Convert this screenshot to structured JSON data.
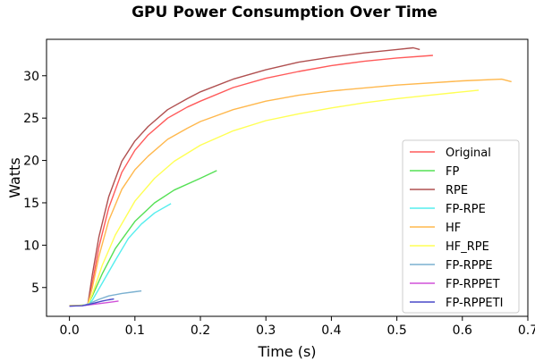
{
  "chart_data": {
    "type": "line",
    "title": "GPU Power Consumption Over Time",
    "xlabel": "Time (s)",
    "ylabel": "Watts",
    "xlim": [
      -0.035,
      0.7
    ],
    "ylim": [
      1.6,
      34.3
    ],
    "xticks": [
      0.0,
      0.1,
      0.2,
      0.3,
      0.4,
      0.5,
      0.6,
      0.7
    ],
    "xtick_labels": [
      "0.0",
      "0.1",
      "0.2",
      "0.3",
      "0.4",
      "0.5",
      "0.6",
      "0.7"
    ],
    "yticks": [
      5,
      10,
      15,
      20,
      25,
      30
    ],
    "ytick_labels": [
      "5",
      "10",
      "15",
      "20",
      "25",
      "30"
    ],
    "grid": false,
    "legend_position": "lower-right",
    "series": [
      {
        "name": "Original",
        "color": "#ff5a5a",
        "x": [
          0.0,
          0.01,
          0.02,
          0.028,
          0.035,
          0.045,
          0.06,
          0.08,
          0.1,
          0.12,
          0.15,
          0.18,
          0.2,
          0.25,
          0.3,
          0.35,
          0.4,
          0.45,
          0.5,
          0.555
        ],
        "y": [
          2.9,
          2.9,
          2.9,
          2.95,
          5.5,
          9.8,
          14.4,
          18.6,
          21.2,
          23.0,
          25.0,
          26.3,
          27.0,
          28.6,
          29.7,
          30.5,
          31.2,
          31.7,
          32.1,
          32.4
        ]
      },
      {
        "name": "FP",
        "color": "#55e055",
        "x": [
          0.0,
          0.015,
          0.028,
          0.035,
          0.05,
          0.07,
          0.1,
          0.13,
          0.16,
          0.2,
          0.225
        ],
        "y": [
          2.9,
          2.9,
          2.95,
          4.0,
          6.6,
          9.6,
          12.8,
          15.0,
          16.5,
          17.9,
          18.8
        ]
      },
      {
        "name": "RPE",
        "color": "#b05050",
        "x": [
          0.0,
          0.01,
          0.02,
          0.028,
          0.035,
          0.045,
          0.06,
          0.08,
          0.1,
          0.12,
          0.15,
          0.18,
          0.2,
          0.25,
          0.3,
          0.35,
          0.4,
          0.45,
          0.5,
          0.525,
          0.535
        ],
        "y": [
          2.9,
          2.9,
          2.9,
          2.95,
          6.5,
          11.0,
          15.7,
          19.9,
          22.3,
          24.0,
          26.0,
          27.3,
          28.1,
          29.6,
          30.7,
          31.6,
          32.2,
          32.7,
          33.1,
          33.3,
          33.1
        ]
      },
      {
        "name": "FP-RPE",
        "color": "#55eeee",
        "x": [
          0.0,
          0.015,
          0.028,
          0.035,
          0.05,
          0.07,
          0.09,
          0.11,
          0.13,
          0.155
        ],
        "y": [
          2.9,
          2.9,
          2.95,
          3.5,
          5.5,
          8.2,
          10.8,
          12.5,
          13.8,
          14.9
        ]
      },
      {
        "name": "HF",
        "color": "#ffb84d",
        "x": [
          0.0,
          0.01,
          0.02,
          0.028,
          0.035,
          0.045,
          0.06,
          0.08,
          0.1,
          0.12,
          0.15,
          0.18,
          0.2,
          0.25,
          0.3,
          0.35,
          0.4,
          0.5,
          0.6,
          0.66,
          0.675
        ],
        "y": [
          2.9,
          2.9,
          2.9,
          2.95,
          5.0,
          8.7,
          12.9,
          16.6,
          18.9,
          20.5,
          22.5,
          23.8,
          24.6,
          26.0,
          27.0,
          27.7,
          28.2,
          28.9,
          29.4,
          29.6,
          29.3
        ]
      },
      {
        "name": "HF_RPE",
        "color": "#ffff55",
        "x": [
          0.0,
          0.015,
          0.028,
          0.035,
          0.05,
          0.07,
          0.1,
          0.13,
          0.16,
          0.2,
          0.25,
          0.3,
          0.35,
          0.4,
          0.45,
          0.5,
          0.55,
          0.6,
          0.625
        ],
        "y": [
          2.9,
          2.9,
          2.95,
          4.2,
          7.6,
          11.2,
          15.2,
          17.9,
          19.9,
          21.8,
          23.5,
          24.7,
          25.5,
          26.2,
          26.8,
          27.3,
          27.7,
          28.1,
          28.3
        ]
      },
      {
        "name": "FP-RPPE",
        "color": "#7ab0d0",
        "x": [
          0.0,
          0.02,
          0.03,
          0.045,
          0.06,
          0.08,
          0.1,
          0.11
        ],
        "y": [
          2.8,
          2.85,
          3.1,
          3.6,
          4.0,
          4.3,
          4.5,
          4.6
        ]
      },
      {
        "name": "FP-RPPET",
        "color": "#d050d8",
        "x": [
          0.0,
          0.02,
          0.03,
          0.045,
          0.06,
          0.07,
          0.075
        ],
        "y": [
          2.8,
          2.85,
          2.95,
          3.1,
          3.25,
          3.35,
          3.4
        ]
      },
      {
        "name": "FP-RPPETI",
        "color": "#4848c8",
        "x": [
          0.0,
          0.02,
          0.03,
          0.04,
          0.05,
          0.06,
          0.068
        ],
        "y": [
          2.8,
          2.85,
          3.0,
          3.2,
          3.4,
          3.55,
          3.65
        ]
      }
    ]
  }
}
